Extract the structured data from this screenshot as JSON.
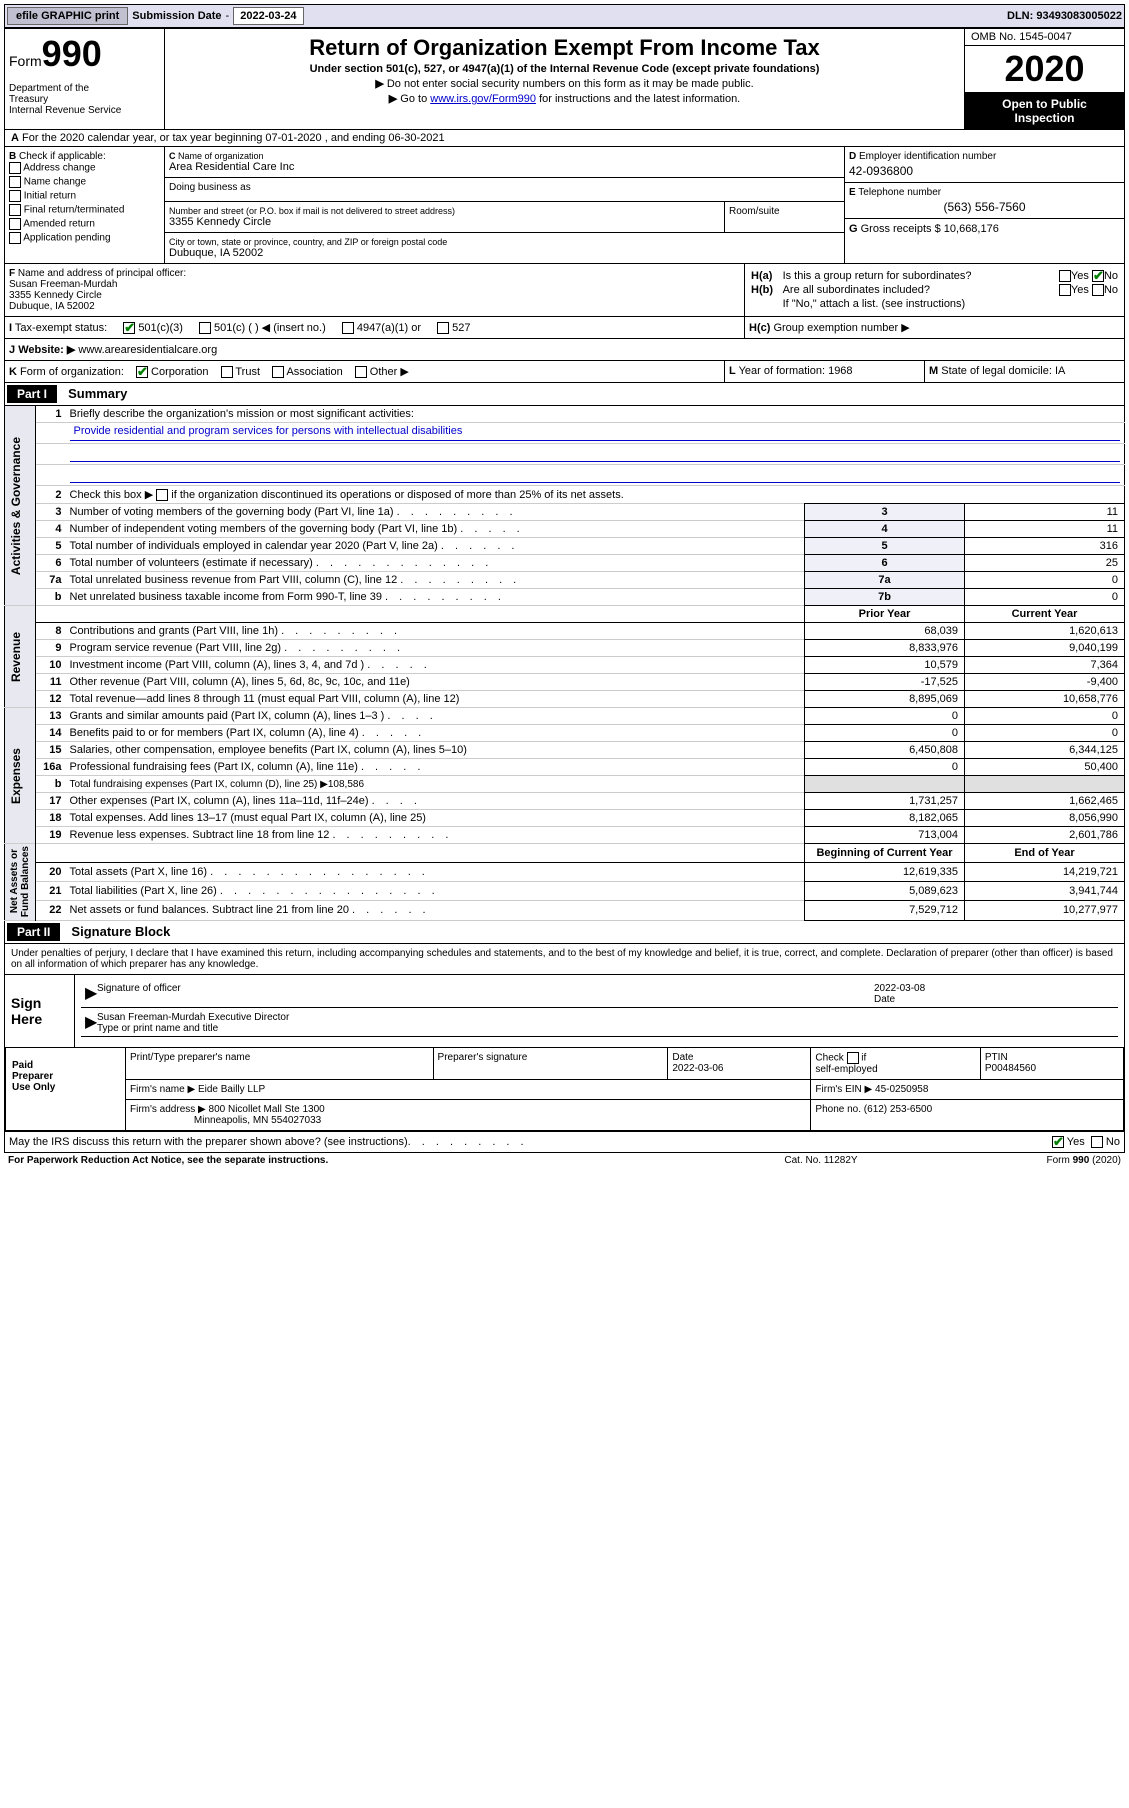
{
  "topbar": {
    "efile": "efile GRAPHIC print",
    "submission_label": "Submission Date",
    "submission_date": "2022-03-24",
    "dln_label": "DLN:",
    "dln": "93493083005022"
  },
  "header": {
    "form_prefix": "Form",
    "form_number": "990",
    "dept": "Department of the Treasury\nInternal Revenue Service",
    "title": "Return of Organization Exempt From Income Tax",
    "subtitle": "Under section 501(c), 527, or 4947(a)(1) of the Internal Revenue Code (except private foundations)",
    "instr1": "Do not enter social security numbers on this form as it may be made public.",
    "instr2_prefix": "Go to",
    "instr2_link": "www.irs.gov/Form990",
    "instr2_suffix": "for instructions and the latest information.",
    "omb": "OMB No. 1545-0047",
    "year": "2020",
    "inspect1": "Open to Public",
    "inspect2": "Inspection"
  },
  "rowA": "For the 2020 calendar year, or tax year beginning 07-01-2020   , and ending 06-30-2021",
  "colB": {
    "header": "Check if applicable:",
    "items": [
      "Address change",
      "Name change",
      "Initial return",
      "Final return/terminated",
      "Amended return",
      "Application pending"
    ]
  },
  "nameBox": {
    "label": "Name of organization",
    "value": "Area Residential Care Inc",
    "dba_label": "Doing business as"
  },
  "addr": {
    "street_label": "Number and street (or P.O. box if mail is not delivered to street address)",
    "street": "3355 Kennedy Circle",
    "suite_label": "Room/suite",
    "city_label": "City or town, state or province, country, and ZIP or foreign postal code",
    "city": "Dubuque, IA  52002"
  },
  "colD": {
    "d_label": "Employer identification number",
    "d_value": "42-0936800",
    "e_label": "Telephone number",
    "e_value": "(563) 556-7560",
    "g_label": "Gross receipts $",
    "g_value": "10,668,176"
  },
  "officer": {
    "label": "Name and address of principal officer:",
    "name": "Susan Freeman-Murdah",
    "street": "3355 Kennedy Circle",
    "city": "Dubuque, IA  52002"
  },
  "taxStatus": {
    "label": "Tax-exempt status:",
    "opts": [
      "501(c)(3)",
      "501(c) (  ) ◀ (insert no.)",
      "4947(a)(1) or",
      "527"
    ]
  },
  "hBox": {
    "ha": "Is this a group return for subordinates?",
    "hb": "Are all subordinates included?",
    "hb_note": "If \"No,\" attach a list. (see instructions)",
    "hc": "Group exemption number ▶"
  },
  "website": {
    "label": "Website: ▶",
    "value": "www.arearesidentialcare.org"
  },
  "kRow": {
    "k_label": "Form of organization:",
    "k_opts": [
      "Corporation",
      "Trust",
      "Association",
      "Other ▶"
    ],
    "l": "Year of formation: 1968",
    "m": "State of legal domicile: IA"
  },
  "partI": {
    "part": "Part I",
    "title": "Summary"
  },
  "summary": {
    "q1": "Briefly describe the organization's mission or most significant activities:",
    "mission": "Provide residential and program services for persons with intellectual disabilities",
    "q2": "Check this box ▶     if the organization discontinued its operations or disposed of more than 25% of its net assets.",
    "q3": "Number of voting members of the governing body (Part VI, line 1a)",
    "q4": "Number of independent voting members of the governing body (Part VI, line 1b)",
    "q5": "Total number of individuals employed in calendar year 2020 (Part V, line 2a)",
    "q6": "Total number of volunteers (estimate if necessary)",
    "q7a": "Total unrelated business revenue from Part VIII, column (C), line 12",
    "q7b": "Net unrelated business taxable income from Form 990-T, line 39",
    "v3": "11",
    "v4": "11",
    "v5": "316",
    "v6": "25",
    "v7a": "0",
    "v7b": "0"
  },
  "revenue": {
    "hdr_prior": "Prior Year",
    "hdr_curr": "Current Year",
    "rows": [
      {
        "n": "8",
        "d": "Contributions and grants (Part VIII, line 1h)",
        "p": "68,039",
        "c": "1,620,613"
      },
      {
        "n": "9",
        "d": "Program service revenue (Part VIII, line 2g)",
        "p": "8,833,976",
        "c": "9,040,199"
      },
      {
        "n": "10",
        "d": "Investment income (Part VIII, column (A), lines 3, 4, and 7d )",
        "p": "10,579",
        "c": "7,364"
      },
      {
        "n": "11",
        "d": "Other revenue (Part VIII, column (A), lines 5, 6d, 8c, 9c, 10c, and 11e)",
        "p": "-17,525",
        "c": "-9,400"
      },
      {
        "n": "12",
        "d": "Total revenue—add lines 8 through 11 (must equal Part VIII, column (A), line 12)",
        "p": "8,895,069",
        "c": "10,658,776"
      }
    ]
  },
  "expenses": {
    "rows": [
      {
        "n": "13",
        "d": "Grants and similar amounts paid (Part IX, column (A), lines 1–3 )",
        "p": "0",
        "c": "0"
      },
      {
        "n": "14",
        "d": "Benefits paid to or for members (Part IX, column (A), line 4)",
        "p": "0",
        "c": "0"
      },
      {
        "n": "15",
        "d": "Salaries, other compensation, employee benefits (Part IX, column (A), lines 5–10)",
        "p": "6,450,808",
        "c": "6,344,125"
      },
      {
        "n": "16a",
        "d": "Professional fundraising fees (Part IX, column (A), line 11e)",
        "p": "0",
        "c": "50,400"
      },
      {
        "n": "b",
        "d": "Total fundraising expenses (Part IX, column (D), line 25) ▶108,586",
        "p": "",
        "c": ""
      },
      {
        "n": "17",
        "d": "Other expenses (Part IX, column (A), lines 11a–11d, 11f–24e)",
        "p": "1,731,257",
        "c": "1,662,465"
      },
      {
        "n": "18",
        "d": "Total expenses. Add lines 13–17 (must equal Part IX, column (A), line 25)",
        "p": "8,182,065",
        "c": "8,056,990"
      },
      {
        "n": "19",
        "d": "Revenue less expenses. Subtract line 18 from line 12",
        "p": "713,004",
        "c": "2,601,786"
      }
    ]
  },
  "netassets": {
    "hdr_begin": "Beginning of Current Year",
    "hdr_end": "End of Year",
    "rows": [
      {
        "n": "20",
        "d": "Total assets (Part X, line 16)",
        "p": "12,619,335",
        "c": "14,219,721"
      },
      {
        "n": "21",
        "d": "Total liabilities (Part X, line 26)",
        "p": "5,089,623",
        "c": "3,941,744"
      },
      {
        "n": "22",
        "d": "Net assets or fund balances. Subtract line 21 from line 20",
        "p": "7,529,712",
        "c": "10,277,977"
      }
    ]
  },
  "vlabels": {
    "gov": "Activities & Governance",
    "rev": "Revenue",
    "exp": "Expenses",
    "net": "Net Assets or\nFund Balances"
  },
  "partII": {
    "part": "Part II",
    "title": "Signature Block"
  },
  "perjury": "Under penalties of perjury, I declare that I have examined this return, including accompanying schedules and statements, and to the best of my knowledge and belief, it is true, correct, and complete. Declaration of preparer (other than officer) is based on all information of which preparer has any knowledge.",
  "sign": {
    "label": "Sign Here",
    "sig_of_officer": "Signature of officer",
    "date_label": "Date",
    "date": "2022-03-08",
    "name": "Susan Freeman-Murdah  Executive Director",
    "type_label": "Type or print name and title"
  },
  "preparer": {
    "label": "Paid Preparer Use Only",
    "print_label": "Print/Type preparer's name",
    "sig_label": "Preparer's signature",
    "date_label": "Date",
    "date": "2022-03-06",
    "check_label": "Check       if self-employed",
    "ptin_label": "PTIN",
    "ptin": "P00484560",
    "firm_name_label": "Firm's name    ▶",
    "firm_name": "Eide Bailly LLP",
    "firm_ein_label": "Firm's EIN ▶",
    "firm_ein": "45-0250958",
    "firm_addr_label": "Firm's address ▶",
    "firm_addr1": "800 Nicollet Mall Ste 1300",
    "firm_addr2": "Minneapolis, MN  554027033",
    "phone_label": "Phone no.",
    "phone": "(612) 253-6500"
  },
  "discuss": "May the IRS discuss this return with the preparer shown above? (see instructions)",
  "footer": {
    "left": "For Paperwork Reduction Act Notice, see the separate instructions.",
    "mid": "Cat. No. 11282Y",
    "right": "Form 990 (2020)"
  }
}
